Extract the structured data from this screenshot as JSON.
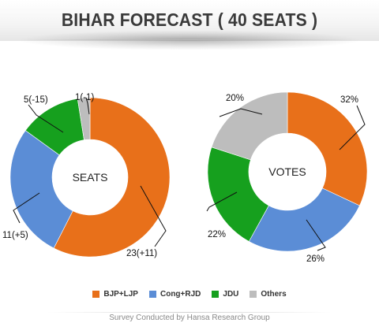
{
  "header": {
    "title": "BIHAR FORECAST ( 40 SEATS )"
  },
  "colors": {
    "bjp_ljp": "#E8701A",
    "cong_rjd": "#5B8DD6",
    "jdu": "#16A01E",
    "others": "#BDBDBD"
  },
  "chart_data": [
    {
      "type": "pie",
      "variant": "donut",
      "center_label": "SEATS",
      "slices": [
        {
          "name": "BJP+LJP",
          "value": 23,
          "label": "23(+11)",
          "color": "#E8701A"
        },
        {
          "name": "Cong+RJD",
          "value": 11,
          "label": "11(+5)",
          "color": "#5B8DD6"
        },
        {
          "name": "JDU",
          "value": 5,
          "label": "5(-15)",
          "color": "#16A01E"
        },
        {
          "name": "Others",
          "value": 1,
          "label": "1(-1)",
          "color": "#BDBDBD"
        }
      ]
    },
    {
      "type": "pie",
      "variant": "donut",
      "center_label": "VOTES",
      "slices": [
        {
          "name": "BJP+LJP",
          "value": 32,
          "label": "32%",
          "color": "#E8701A"
        },
        {
          "name": "Cong+RJD",
          "value": 26,
          "label": "26%",
          "color": "#5B8DD6"
        },
        {
          "name": "JDU",
          "value": 22,
          "label": "22%",
          "color": "#16A01E"
        },
        {
          "name": "Others",
          "value": 20,
          "label": "20%",
          "color": "#BDBDBD"
        }
      ]
    }
  ],
  "legend": [
    {
      "name": "BJP+LJP",
      "color": "#E8701A"
    },
    {
      "name": "Cong+RJD",
      "color": "#5B8DD6"
    },
    {
      "name": "JDU",
      "color": "#16A01E"
    },
    {
      "name": "Others",
      "color": "#BDBDBD"
    }
  ],
  "footer": {
    "text": "Survey Conducted by Hansa Research Group"
  }
}
